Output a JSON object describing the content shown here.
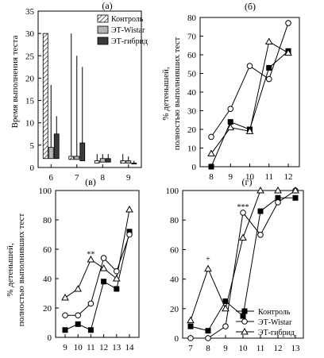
{
  "chart_data": [
    {
      "id": "a",
      "type": "bar",
      "panel_label": "(а)",
      "ylabel": "Время выполнения теста",
      "ylim": [
        0,
        35
      ],
      "yticks": [
        "0",
        "5",
        "10",
        "15",
        "20",
        "25",
        "30",
        "35"
      ],
      "categories": [
        "6",
        "7",
        "8",
        "9"
      ],
      "legend": [
        {
          "name": "Контроль",
          "fill": "#ffffff",
          "hatch": true
        },
        {
          "name": "ЭТ-Wistar",
          "fill": "#b5b5b5",
          "hatch": false
        },
        {
          "name": "ЭТ-гибрид",
          "fill": "#3a3a3a",
          "hatch": false
        }
      ],
      "series": [
        {
          "name": "Контроль",
          "values": [
            30,
            2.5,
            1.5,
            1.5
          ],
          "err_low": [
            2,
            1.8,
            1,
            1
          ],
          "err_high": [
            30,
            30,
            3,
            3
          ]
        },
        {
          "name": "ЭТ-Wistar",
          "values": [
            4.5,
            2.5,
            2,
            1.5
          ],
          "err_low": [
            2,
            1.8,
            1.2,
            1
          ],
          "err_high": [
            18.5,
            25,
            3,
            2.5
          ]
        },
        {
          "name": "ЭТ-гибрид",
          "values": [
            7.5,
            5.5,
            2,
            1
          ],
          "err_low": [
            2,
            1.5,
            1.2,
            0.8
          ],
          "err_high": [
            11.5,
            22.5,
            3,
            1.5
          ]
        }
      ]
    },
    {
      "id": "b",
      "type": "line",
      "panel_label": "(б)",
      "ylabel": "% детенышей, полностью выполнивших тест",
      "ylim": [
        0,
        80
      ],
      "yticks": [
        "0",
        "10",
        "20",
        "30",
        "40",
        "50",
        "60",
        "70",
        "80"
      ],
      "x": [
        8,
        9,
        10,
        11,
        12
      ],
      "xticks": [
        "8",
        "9",
        "10",
        "11",
        "12"
      ],
      "series": [
        {
          "name": "Контроль",
          "marker": "square",
          "values": [
            0,
            24,
            20,
            53,
            62
          ]
        },
        {
          "name": "ЭТ-Wistar",
          "marker": "circle",
          "values": [
            16,
            31,
            54,
            47,
            77
          ]
        },
        {
          "name": "ЭТ-гибрид",
          "marker": "triangle",
          "values": [
            7,
            21,
            19,
            67,
            61
          ]
        }
      ]
    },
    {
      "id": "v",
      "type": "line",
      "panel_label": "(в)",
      "ylabel": "% детенышей, полностью выполнивших тест",
      "ylim": [
        0,
        100
      ],
      "yticks": [
        "0",
        "20",
        "40",
        "60",
        "80",
        "100"
      ],
      "x": [
        9,
        10,
        11,
        12,
        13,
        14
      ],
      "xticks": [
        "9",
        "10",
        "11",
        "12",
        "13",
        "14"
      ],
      "annotations": [
        {
          "text": "**",
          "x": 11,
          "y": 55
        }
      ],
      "series": [
        {
          "name": "Контроль",
          "marker": "square",
          "values": [
            5,
            9,
            5,
            38,
            33,
            72
          ]
        },
        {
          "name": "ЭТ-Wistar",
          "marker": "circle",
          "values": [
            15,
            15,
            23,
            54,
            45,
            70
          ]
        },
        {
          "name": "ЭТ-гибрид",
          "marker": "triangle",
          "values": [
            27,
            33,
            53,
            47,
            40,
            87
          ]
        }
      ]
    },
    {
      "id": "g",
      "type": "line",
      "panel_label": "(г)",
      "ylim": [
        0,
        100
      ],
      "yticks": [
        "0",
        "20",
        "40",
        "60",
        "80",
        "100"
      ],
      "x": [
        7,
        8,
        9,
        10,
        11,
        12,
        13
      ],
      "xticks": [
        "7",
        "8",
        "9",
        "10",
        "11",
        "12",
        "13"
      ],
      "legend": [
        {
          "name": "Контроль",
          "marker": "square"
        },
        {
          "name": "ЭТ-Wistar",
          "marker": "circle"
        },
        {
          "name": "ЭТ-гибрид",
          "marker": "triangle"
        }
      ],
      "annotations": [
        {
          "text": "+",
          "x": 8,
          "y": 52
        },
        {
          "text": "***",
          "x": 10,
          "y": 87
        }
      ],
      "series": [
        {
          "name": "Контроль",
          "marker": "square",
          "values": [
            8,
            5,
            25,
            15,
            86,
            95,
            95
          ]
        },
        {
          "name": "ЭТ-Wistar",
          "marker": "circle",
          "values": [
            0,
            0,
            8,
            85,
            70,
            92,
            100
          ]
        },
        {
          "name": "ЭТ-гибрид",
          "marker": "triangle",
          "values": [
            12,
            47,
            20,
            68,
            100,
            100,
            100
          ]
        }
      ]
    }
  ]
}
